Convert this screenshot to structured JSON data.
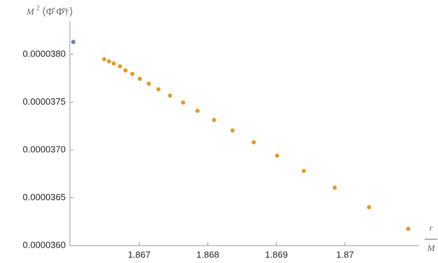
{
  "chart_data": {
    "type": "scatter",
    "y_label": {
      "base": "M",
      "sup": "2",
      "rest": "⟨Φ̂ Φ̂†⟩"
    },
    "x_label": {
      "numerator": "r",
      "denominator": "M"
    },
    "xlim": [
      1.86599,
      1.87108
    ],
    "ylim": [
      3.6e-05,
      3.835e-05
    ],
    "xticks": [
      1.867,
      1.868,
      1.869,
      1.87
    ],
    "yticks": [
      {
        "value": 3.6e-05,
        "label": "0.0000360"
      },
      {
        "value": 3.65e-05,
        "label": "0.0000365"
      },
      {
        "value": 3.7e-05,
        "label": "0.0000370"
      },
      {
        "value": 3.75e-05,
        "label": "0.0000375"
      },
      {
        "value": 3.8e-05,
        "label": "0.0000380"
      }
    ],
    "series": [
      {
        "color": "#5e81b5",
        "x": [
          1.86604
        ],
        "values": [
          3.8131e-05
        ]
      },
      {
        "color": "#e19c24",
        "x": [
          1.86649,
          1.86656,
          1.86663,
          1.86672,
          1.8668,
          1.8669,
          1.86701,
          1.86714,
          1.86728,
          1.86745,
          1.86764,
          1.86785,
          1.86809,
          1.86836,
          1.86867,
          1.86901,
          1.8694,
          1.86985,
          1.87035,
          1.87092
        ],
        "values": [
          3.7949e-05,
          3.7927e-05,
          3.7905e-05,
          3.7876e-05,
          3.7832e-05,
          3.7796e-05,
          3.7744e-05,
          3.7693e-05,
          3.7635e-05,
          3.7569e-05,
          3.7496e-05,
          3.7409e-05,
          3.7314e-05,
          3.7204e-05,
          3.708e-05,
          3.6941e-05,
          3.6781e-05,
          3.6606e-05,
          3.6401e-05,
          3.6175e-05
        ]
      }
    ]
  }
}
